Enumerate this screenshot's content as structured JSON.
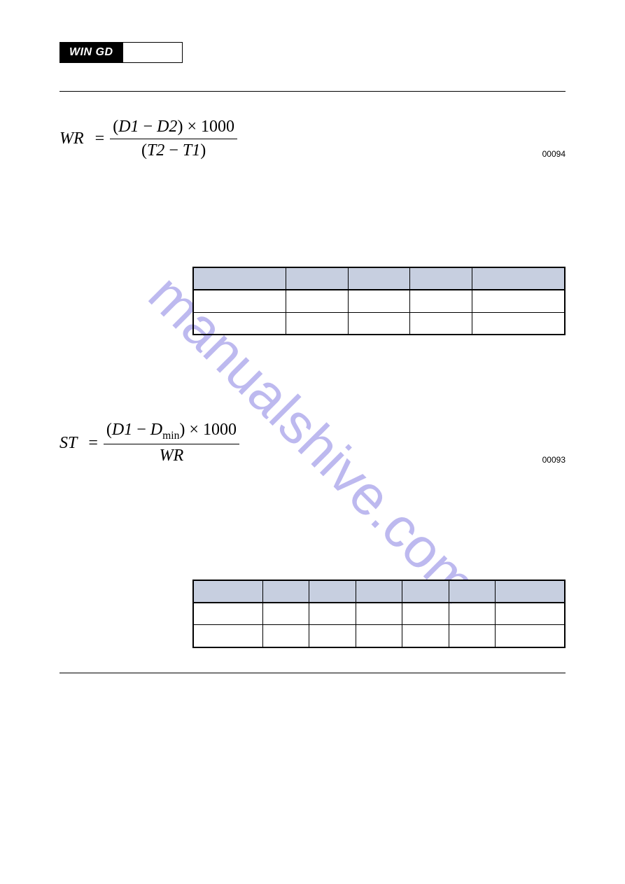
{
  "header": {
    "logo": "WIN GD"
  },
  "watermark": "manualshive.com",
  "formula1": {
    "lhs": "WR",
    "num_left": "D1",
    "num_right": "D2",
    "num_mult": "1000",
    "den_left": "T2",
    "den_right": "T1",
    "eqnum": "00094"
  },
  "formula2": {
    "lhs": "ST",
    "num_left": "D1",
    "num_right_base": "D",
    "num_right_sub": "min",
    "num_mult": "1000",
    "den": "WR",
    "eqnum": "00093"
  },
  "table1": {
    "cols": 5,
    "header_bg": "#c7cfe0"
  },
  "table2": {
    "cols": 7,
    "header_bg": "#c7cfe0"
  }
}
